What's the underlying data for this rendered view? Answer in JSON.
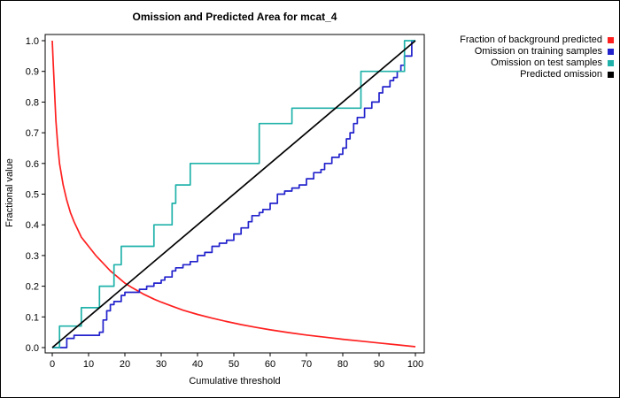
{
  "window": {
    "background": "#ffffff",
    "border_color": "#000000"
  },
  "chart_data": {
    "type": "line",
    "title": "Omission and Predicted Area for mcat_4",
    "xlabel": "Cumulative threshold",
    "ylabel": "Fractional value",
    "xlim": [
      0,
      100
    ],
    "ylim": [
      0,
      1
    ],
    "xticks": [
      0,
      10,
      20,
      30,
      40,
      50,
      60,
      70,
      80,
      90,
      100
    ],
    "yticks": [
      0,
      0.1,
      0.2,
      0.3,
      0.4,
      0.5,
      0.6,
      0.7,
      0.8,
      0.9,
      1.0
    ],
    "grid": false,
    "legend_position": "top-right-outside",
    "series": [
      {
        "name": "Fraction of background predicted",
        "color": "#ff1f1f",
        "type": "line",
        "points": [
          [
            0,
            1.0
          ],
          [
            0.3,
            0.92
          ],
          [
            0.6,
            0.84
          ],
          [
            1,
            0.74
          ],
          [
            1.5,
            0.66
          ],
          [
            2,
            0.6
          ],
          [
            3,
            0.53
          ],
          [
            4,
            0.48
          ],
          [
            5,
            0.44
          ],
          [
            6,
            0.41
          ],
          [
            7,
            0.385
          ],
          [
            8,
            0.36
          ],
          [
            9,
            0.345
          ],
          [
            10,
            0.33
          ],
          [
            12,
            0.3
          ],
          [
            14,
            0.275
          ],
          [
            16,
            0.25
          ],
          [
            18,
            0.23
          ],
          [
            20,
            0.21
          ],
          [
            22,
            0.195
          ],
          [
            25,
            0.175
          ],
          [
            28,
            0.158
          ],
          [
            30,
            0.148
          ],
          [
            33,
            0.135
          ],
          [
            36,
            0.122
          ],
          [
            40,
            0.108
          ],
          [
            44,
            0.096
          ],
          [
            48,
            0.085
          ],
          [
            52,
            0.075
          ],
          [
            56,
            0.066
          ],
          [
            60,
            0.058
          ],
          [
            65,
            0.049
          ],
          [
            70,
            0.041
          ],
          [
            75,
            0.034
          ],
          [
            80,
            0.027
          ],
          [
            85,
            0.021
          ],
          [
            90,
            0.015
          ],
          [
            95,
            0.009
          ],
          [
            100,
            0.003
          ]
        ]
      },
      {
        "name": "Omission on training samples",
        "color": "#2222cc",
        "type": "step",
        "points": [
          [
            0,
            0.0
          ],
          [
            4,
            0.03
          ],
          [
            6,
            0.04
          ],
          [
            13,
            0.05
          ],
          [
            14,
            0.09
          ],
          [
            15,
            0.12
          ],
          [
            16,
            0.14
          ],
          [
            17,
            0.15
          ],
          [
            19,
            0.17
          ],
          [
            20,
            0.18
          ],
          [
            24,
            0.19
          ],
          [
            26,
            0.2
          ],
          [
            28,
            0.21
          ],
          [
            30,
            0.22
          ],
          [
            31,
            0.23
          ],
          [
            33,
            0.25
          ],
          [
            34,
            0.26
          ],
          [
            36,
            0.27
          ],
          [
            38,
            0.28
          ],
          [
            40,
            0.3
          ],
          [
            42,
            0.31
          ],
          [
            44,
            0.33
          ],
          [
            46,
            0.34
          ],
          [
            48,
            0.35
          ],
          [
            50,
            0.37
          ],
          [
            52,
            0.39
          ],
          [
            54,
            0.41
          ],
          [
            55,
            0.43
          ],
          [
            57,
            0.44
          ],
          [
            58,
            0.45
          ],
          [
            60,
            0.47
          ],
          [
            62,
            0.5
          ],
          [
            64,
            0.51
          ],
          [
            66,
            0.52
          ],
          [
            68,
            0.53
          ],
          [
            70,
            0.55
          ],
          [
            72,
            0.57
          ],
          [
            74,
            0.58
          ],
          [
            75,
            0.6
          ],
          [
            77,
            0.62
          ],
          [
            79,
            0.63
          ],
          [
            80,
            0.65
          ],
          [
            81,
            0.68
          ],
          [
            82,
            0.7
          ],
          [
            83,
            0.73
          ],
          [
            84,
            0.75
          ],
          [
            86,
            0.78
          ],
          [
            88,
            0.8
          ],
          [
            90,
            0.83
          ],
          [
            91,
            0.85
          ],
          [
            93,
            0.87
          ],
          [
            94,
            0.88
          ],
          [
            95,
            0.9
          ],
          [
            96,
            0.92
          ],
          [
            97,
            0.95
          ],
          [
            99,
            1.0
          ],
          [
            100,
            1.0
          ]
        ]
      },
      {
        "name": "Omission on test samples",
        "color": "#20b2aa",
        "type": "step",
        "points": [
          [
            0,
            0.0
          ],
          [
            2,
            0.07
          ],
          [
            8,
            0.13
          ],
          [
            13,
            0.2
          ],
          [
            17,
            0.27
          ],
          [
            19,
            0.33
          ],
          [
            28,
            0.4
          ],
          [
            33,
            0.47
          ],
          [
            34,
            0.53
          ],
          [
            38,
            0.6
          ],
          [
            57,
            0.73
          ],
          [
            66,
            0.78
          ],
          [
            85,
            0.9
          ],
          [
            97,
            1.0
          ],
          [
            100,
            1.0
          ]
        ]
      },
      {
        "name": "Predicted omission",
        "color": "#000000",
        "type": "line",
        "points": [
          [
            0,
            0.0
          ],
          [
            100,
            1.0
          ]
        ]
      }
    ]
  }
}
